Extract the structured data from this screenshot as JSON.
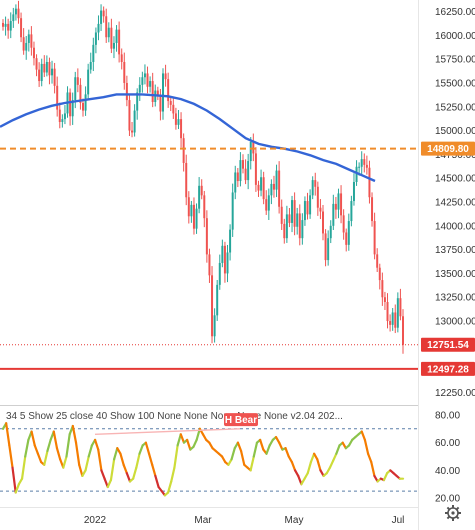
{
  "chart_data": [
    {
      "type": "candlestick",
      "title": "",
      "xlabel": "",
      "ylabel": "",
      "ylim": [
        12150,
        16350
      ],
      "yticks": [
        "16250.00",
        "16000.00",
        "15750.00",
        "15500.00",
        "15250.00",
        "15000.00",
        "14750.00",
        "14500.00",
        "14250.00",
        "14000.00",
        "13750.00",
        "13500.00",
        "13250.00",
        "13000.00",
        "12750.00",
        "12500.00",
        "12250.00"
      ],
      "x_labels": [
        "2022",
        "Mar",
        "May",
        "Jul"
      ],
      "grid": false,
      "candles_close": [
        16090,
        16120,
        16050,
        16150,
        16220,
        16280,
        16180,
        15980,
        15840,
        15920,
        16010,
        15870,
        15760,
        15640,
        15520,
        15700,
        15610,
        15720,
        15580,
        15650,
        15470,
        15220,
        15090,
        15120,
        15180,
        15400,
        15150,
        15320,
        15560,
        15480,
        15290,
        15210,
        15380,
        15640,
        15720,
        15900,
        16030,
        16120,
        16260,
        16200,
        15980,
        16080,
        15860,
        15920,
        16060,
        15800,
        15720,
        15500,
        15320,
        15000,
        14980,
        15210,
        15400,
        15480,
        15560,
        15600,
        15460,
        15520,
        15300,
        15420,
        15360,
        15200,
        15600,
        15540,
        15310,
        15270,
        15180,
        15060,
        15120,
        14920,
        14660,
        14300,
        14100,
        14220,
        13970,
        14180,
        14420,
        14320,
        14080,
        13700,
        13480,
        12840,
        13060,
        13380,
        13610,
        13790,
        13500,
        13720,
        13960,
        14350,
        14560,
        14470,
        14690,
        14600,
        14480,
        14680,
        14880,
        14760,
        14430,
        14370,
        14510,
        14280,
        14160,
        14320,
        14440,
        14380,
        14580,
        14200,
        14020,
        13870,
        14120,
        14030,
        14270,
        13990,
        14130,
        13870,
        14060,
        14260,
        14120,
        14320,
        14480,
        14410,
        14190,
        14150,
        13920,
        13640,
        13870,
        14000,
        14230,
        14170,
        14340,
        14110,
        13930,
        13800,
        14050,
        14260,
        14460,
        14620,
        14620,
        14700,
        14640,
        14610,
        14300,
        14050,
        13700,
        13560,
        13430,
        13250,
        13200,
        13000,
        12960,
        13090,
        12930,
        13240,
        13050,
        12751.54
      ],
      "series": [
        {
          "name": "",
          "type": "line",
          "values": [
            15040,
            15110,
            15170,
            15220,
            15260,
            15290,
            15310,
            15330,
            15350,
            15380,
            15380,
            15380,
            15370,
            15360,
            15330,
            15280,
            15210,
            15120,
            15020,
            14920,
            14860,
            14830,
            14810,
            14780,
            14740,
            14690,
            14650,
            14590,
            14530,
            14470
          ]
        }
      ],
      "levels": [
        {
          "value": 14809.8,
          "label": "14809.80",
          "color": "#f08c2a",
          "style": "dashed"
        },
        {
          "value": 12497.28,
          "label": "12497.28",
          "color": "#e53935",
          "style": "solid"
        },
        {
          "value": 12751.54,
          "label": "12751.54",
          "color": "#e53935",
          "style": "dotted"
        }
      ]
    },
    {
      "type": "line",
      "title": "34 5 Show 25 close 40 Show 100 None None None None None v2.04 202...",
      "ylim": [
        15,
        85
      ],
      "yticks": [
        "80.00",
        "60.00",
        "40.00",
        "20.00"
      ],
      "levels": [
        70,
        25
      ],
      "values": [
        70,
        74,
        58,
        42,
        24,
        30,
        34,
        50,
        62,
        68,
        58,
        52,
        46,
        44,
        54,
        62,
        68,
        56,
        48,
        42,
        50,
        66,
        72,
        60,
        44,
        36,
        40,
        50,
        58,
        62,
        55,
        40,
        34,
        28,
        33,
        48,
        56,
        52,
        44,
        38,
        32,
        34,
        42,
        52,
        58,
        60,
        52,
        44,
        36,
        28,
        25,
        22,
        24,
        32,
        42,
        58,
        66,
        60,
        62,
        55,
        57,
        62,
        70,
        66,
        62,
        60,
        56,
        54,
        52,
        50,
        46,
        44,
        48,
        56,
        60,
        54,
        44,
        42,
        40,
        50,
        60,
        62,
        55,
        52,
        58,
        62,
        64,
        60,
        55,
        56,
        50,
        46,
        40,
        36,
        30,
        34,
        38,
        46,
        52,
        48,
        40,
        36,
        38,
        42,
        47,
        52,
        58,
        60,
        56,
        58,
        62,
        64,
        66,
        68,
        62,
        52,
        46,
        36,
        32,
        34,
        33,
        38,
        40,
        38,
        36,
        34,
        34
      ],
      "annotation": "H Bear"
    }
  ]
}
